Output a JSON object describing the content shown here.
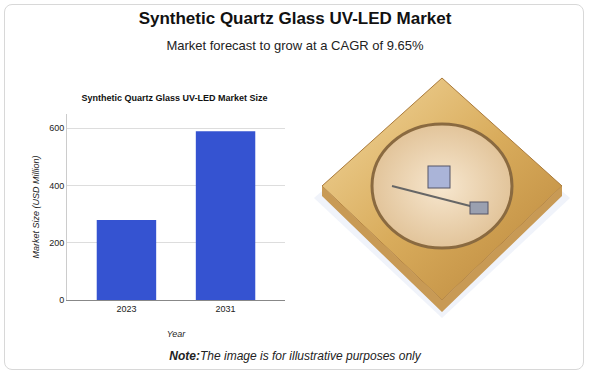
{
  "header": {
    "title": "Synthetic Quartz Glass UV-LED Market",
    "subtitle": "Market forecast to grow at a CAGR of 9.65%"
  },
  "chart_data": {
    "type": "bar",
    "title": "Synthetic Quartz Glass UV-LED Market Size",
    "x_label": "Year",
    "y_label": "Market Size (USD Million)",
    "categories": [
      "2023",
      "2031"
    ],
    "values": [
      280,
      590
    ],
    "color": "#3553d1",
    "ylim": [
      0,
      650
    ],
    "yticks": [
      0,
      200,
      400,
      600
    ],
    "grid": true
  },
  "note": {
    "label": "Note:",
    "text": "The image is for illustrative purposes only"
  }
}
